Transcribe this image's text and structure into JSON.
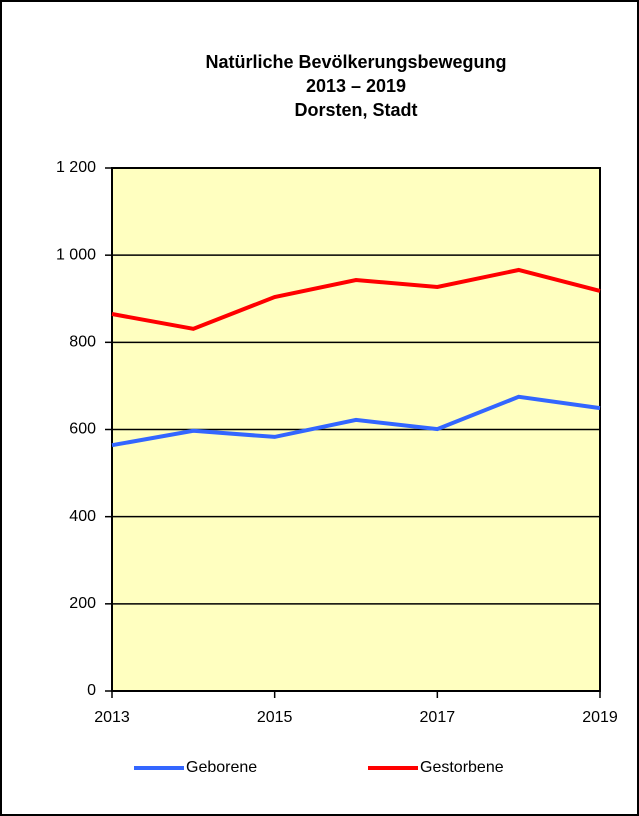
{
  "chart_data": {
    "type": "line",
    "title": [
      "Natürliche Bevölkerungsbewegung",
      "2013 – 2019",
      "Dorsten, Stadt"
    ],
    "x": [
      2013,
      2014,
      2015,
      2016,
      2017,
      2018,
      2019
    ],
    "series": [
      {
        "name": "Geborene",
        "color": "#3366ff",
        "values": [
          564,
          597,
          583,
          622,
          601,
          675,
          649
        ]
      },
      {
        "name": "Gestorbene",
        "color": "#ff0000",
        "values": [
          865,
          831,
          904,
          943,
          927,
          966,
          918
        ]
      }
    ],
    "xlim": [
      2013,
      2019
    ],
    "xticks": [
      2013,
      2015,
      2017,
      2019
    ],
    "ylim": [
      0,
      1200
    ],
    "yticks": [
      0,
      200,
      400,
      600,
      800,
      {
        "value": 1000,
        "label": "1 000"
      },
      {
        "value": 1200,
        "label": "1 200"
      }
    ],
    "grid": true,
    "legend": "bottom",
    "plot_background": "#ffffc0"
  }
}
